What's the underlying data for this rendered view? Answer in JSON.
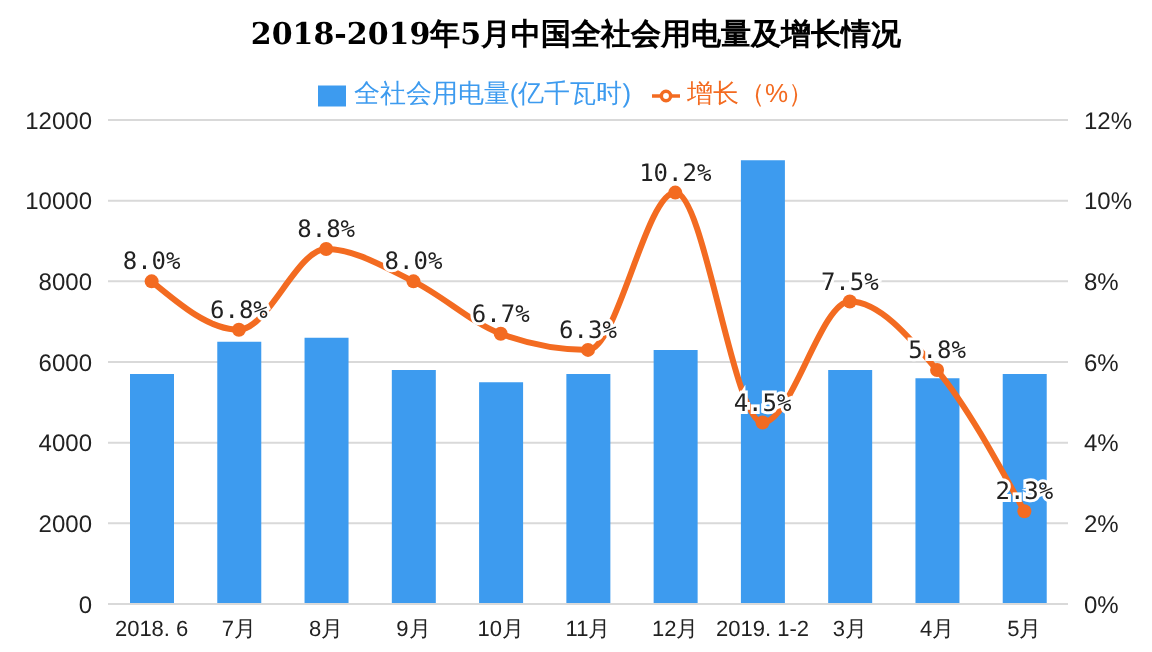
{
  "chart_data": {
    "type": "bar",
    "title": "2018-2019年5月中国全社会用电量及增长情况",
    "categories": [
      "2018. 6",
      "7月",
      "8月",
      "9月",
      "10月",
      "11月",
      "12月",
      "2019. 1-2",
      "3月",
      "4月",
      "5月"
    ],
    "series": [
      {
        "name": "全社会用电量(亿千瓦时)",
        "color": "#3d9bef",
        "values": [
          5700,
          6500,
          6600,
          5800,
          5500,
          5700,
          6300,
          11000,
          5800,
          5600,
          5700
        ]
      },
      {
        "name": "增长（%）",
        "type": "line",
        "axis": "y2",
        "color": "#f36b21",
        "values": [
          8.0,
          6.8,
          8.8,
          8.0,
          6.7,
          6.3,
          10.2,
          4.5,
          7.5,
          5.8,
          2.3
        ],
        "value_labels": [
          "8.0%",
          "6.8%",
          "8.8%",
          "8.0%",
          "6.7%",
          "6.3%",
          "10.2%",
          "4.5%",
          "7.5%",
          "5.8%",
          "2.3%"
        ]
      }
    ],
    "ylim": [
      0,
      12000
    ],
    "yticks": [
      0,
      2000,
      4000,
      6000,
      8000,
      10000,
      12000
    ],
    "y2lim": [
      0,
      12
    ],
    "y2ticks": [
      {
        "value": 0,
        "label": "0%"
      },
      {
        "value": 2,
        "label": "2%"
      },
      {
        "value": 4,
        "label": "4%"
      },
      {
        "value": 6,
        "label": "6%"
      },
      {
        "value": 8,
        "label": "8%"
      },
      {
        "value": 10,
        "label": "10%"
      },
      {
        "value": 12,
        "label": "12%"
      }
    ],
    "grid": "y",
    "legend": "top",
    "marker": "circle",
    "line_style": "solid"
  }
}
